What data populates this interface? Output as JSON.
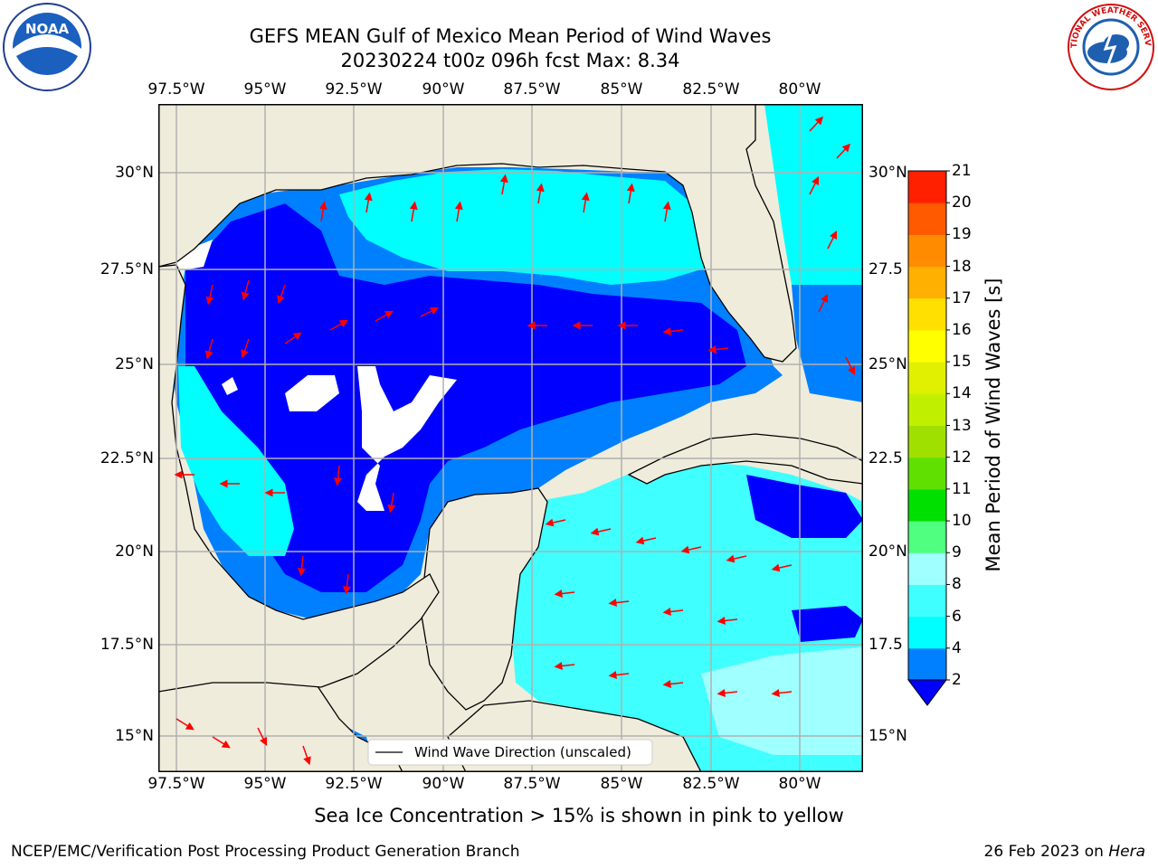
{
  "title": {
    "line1": "GEFS MEAN Gulf of Mexico Mean Period of Wind Waves",
    "line2": "20230224 t00z 096h fcst   Max: 8.34"
  },
  "map": {
    "lon_labels": [
      "97.5°W",
      "95°W",
      "92.5°W",
      "90°W",
      "87.5°W",
      "85°W",
      "82.5°W",
      "80°W"
    ],
    "lat_labels_left": [
      "30°N",
      "27.5°N",
      "25°N",
      "22.5°N",
      "20°N",
      "17.5°N",
      "15°N"
    ],
    "lat_labels_right": [
      "30°N",
      "27.5",
      "25°N",
      "22.5",
      "20°N",
      "17.5",
      "15°N"
    ],
    "legend_text": "Wind Wave Direction (unscaled)",
    "land_color": "#efecdc",
    "arrow_color": "#ff0000",
    "grid": true
  },
  "colorbar": {
    "label": "Mean Period of Wind Waves [s]",
    "ticks": [
      "2",
      "4",
      "6",
      "8",
      "9",
      "10",
      "11",
      "12",
      "13",
      "14",
      "15",
      "16",
      "17",
      "18",
      "19",
      "20",
      "21"
    ],
    "colors": [
      "#0080ff",
      "#00ffff",
      "#40ffff",
      "#a0ffff",
      "#50ff80",
      "#00e000",
      "#60e000",
      "#a0e000",
      "#c0f000",
      "#e0f000",
      "#ffff00",
      "#ffe000",
      "#ffb000",
      "#ff8c00",
      "#ff5a00",
      "#ff2000"
    ],
    "under_color": "#0000ff"
  },
  "notes": {
    "sea_ice": "Sea Ice Concentration > 15% is shown in pink to yellow",
    "footer_left": "NCEP/EMC/Verification Post Processing Product Generation Branch",
    "footer_date": "26 Feb 2023 on ",
    "footer_host": "Hera"
  },
  "logos": {
    "left_text": "NOAA",
    "right_text": "NATIONAL WEATHER SERVICE"
  }
}
